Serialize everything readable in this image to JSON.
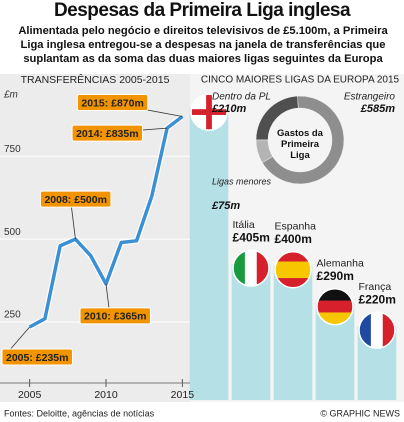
{
  "header": {
    "title": "Despesas da Primeira Liga inglesa",
    "subtitle": "Alimentada pelo negócio e direitos televisivos de £5.100m, a Primeira Liga inglesa entregou-se a despesas na janela de transferências que suplantam as da soma das duas maiores ligas seguintes da Europa"
  },
  "chart_data": [
    {
      "type": "line",
      "title": "TRANSFERÊNCIAS 2005-2015",
      "y_label": "£m",
      "x": [
        2005,
        2006,
        2007,
        2008,
        2009,
        2010,
        2011,
        2012,
        2013,
        2014,
        2015
      ],
      "series": [
        {
          "name": null,
          "color": "#3b8fd4",
          "values": [
            235,
            260,
            480,
            500,
            450,
            365,
            490,
            495,
            630,
            835,
            870
          ],
          "value_labels": [
            "2005: £235m",
            null,
            null,
            "2008: £500m",
            null,
            "2010: £365m",
            null,
            null,
            null,
            "2014: £835m",
            "2015: £870m"
          ]
        }
      ],
      "xlim": [
        2004.5,
        2015.5
      ],
      "xticks": [
        2005,
        2010,
        2015
      ],
      "ylim": [
        60,
        950
      ],
      "yticks": [
        250,
        500,
        750
      ],
      "grid": true
    },
    {
      "type": "bar",
      "title": "CINCO MAIORES LIGAS DA EUROPA 2015",
      "categories": [
        null,
        "Itália",
        "Espanha",
        "Alemanha",
        "França"
      ],
      "values": [
        870,
        405,
        400,
        290,
        220
      ],
      "value_labels": [
        null,
        "£405m",
        "£400m",
        "£290m",
        "£220m"
      ],
      "color": "#b5e0e6",
      "ylim": [
        0,
        900
      ]
    },
    {
      "type": "donut",
      "title": "Gastos da Primeira Liga",
      "categories": [
        "Dentro da PL",
        "Estrangeiro",
        "Ligas menores"
      ],
      "values": [
        210,
        585,
        75
      ],
      "value_labels": [
        "£210m",
        "£585m",
        "£75m"
      ],
      "colors": [
        "#4f4f4f",
        "#8e8e8e",
        "#b4b4b4"
      ]
    }
  ],
  "footer": {
    "source": "Fontes: Deloitte, agências de notícias",
    "credit": "© GRAPHIC NEWS"
  }
}
